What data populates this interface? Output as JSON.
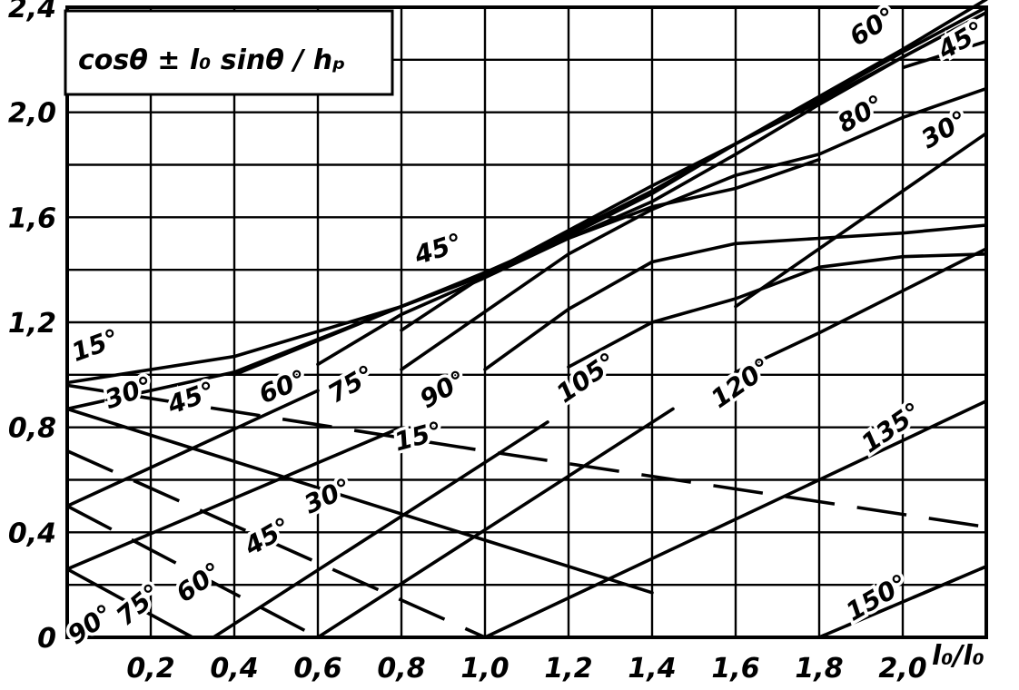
{
  "chart_data": {
    "type": "line",
    "title": "cosθ ± l₀ sinθ / hₚ",
    "xlabel": "l₀/l₀",
    "ylabel": "",
    "xlim": [
      0,
      2.2
    ],
    "ylim": [
      0,
      2.4
    ],
    "grid": true,
    "x_ticks": [
      "0,2",
      "0,4",
      "0,6",
      "0,8",
      "1,0",
      "1,2",
      "1,4",
      "1,6",
      "1,8",
      "2,0"
    ],
    "y_ticks": [
      "0",
      "0,4",
      "0,8",
      "1,2",
      "1,6",
      "2,0",
      "2,4"
    ],
    "series": [
      {
        "label": "15°",
        "group": "upper",
        "style": "solid",
        "points": [
          [
            0,
            0.97
          ],
          [
            0.4,
            1.07
          ],
          [
            0.8,
            1.26
          ],
          [
            1.0,
            1.38
          ],
          [
            1.2,
            1.54
          ],
          [
            1.4,
            1.7
          ],
          [
            1.6,
            1.88
          ],
          [
            1.8,
            2.06
          ],
          [
            2.0,
            2.24
          ],
          [
            2.2,
            2.43
          ]
        ]
      },
      {
        "label": "30°",
        "group": "upper",
        "style": "solid",
        "points": [
          [
            0,
            0.87
          ],
          [
            0.4,
            1.01
          ],
          [
            0.8,
            1.26
          ],
          [
            1.0,
            1.38
          ],
          [
            1.2,
            1.55
          ],
          [
            1.4,
            1.72
          ],
          [
            1.6,
            1.88
          ],
          [
            1.8,
            2.05
          ],
          [
            2.0,
            2.23
          ],
          [
            2.2,
            2.4
          ]
        ]
      },
      {
        "label": "45°",
        "group": "upper",
        "style": "solid",
        "points": [
          [
            0.4,
            1.0
          ],
          [
            0.8,
            1.26
          ],
          [
            1.0,
            1.39
          ],
          [
            1.2,
            1.53
          ],
          [
            1.4,
            1.69
          ],
          [
            1.6,
            1.88
          ],
          [
            1.8,
            2.04
          ],
          [
            2.0,
            2.21
          ],
          [
            2.2,
            2.38
          ]
        ]
      },
      {
        "label": "60°",
        "group": "upper",
        "style": "solid",
        "points": [
          [
            0.6,
            1.04
          ],
          [
            0.8,
            1.23
          ],
          [
            1.0,
            1.37
          ],
          [
            1.2,
            1.52
          ],
          [
            1.4,
            1.66
          ],
          [
            1.6,
            1.84
          ],
          [
            1.8,
            2.03
          ],
          [
            2.0,
            2.21
          ],
          [
            2.2,
            2.38
          ]
        ]
      },
      {
        "label": "75°",
        "group": "upper",
        "style": "solid",
        "points": [
          [
            0.8,
            1.17
          ],
          [
            1.0,
            1.38
          ],
          [
            1.2,
            1.52
          ],
          [
            1.4,
            1.64
          ],
          [
            1.6,
            1.71
          ],
          [
            1.8,
            1.82
          ]
        ]
      },
      {
        "label": "80°",
        "group": "upper",
        "style": "dashed",
        "points": [
          [
            2.0,
            2.17
          ],
          [
            2.2,
            2.27
          ]
        ]
      },
      {
        "label": "90°",
        "group": "upper",
        "style": "solid",
        "points": [
          [
            0.8,
            1.02
          ],
          [
            1.0,
            1.24
          ],
          [
            1.2,
            1.46
          ],
          [
            1.4,
            1.63
          ],
          [
            1.6,
            1.76
          ],
          [
            1.8,
            1.84
          ],
          [
            2.0,
            1.98
          ],
          [
            2.2,
            2.09
          ]
        ]
      },
      {
        "label": "105°",
        "group": "upper",
        "style": "solid",
        "points": [
          [
            1.0,
            1.02
          ],
          [
            1.2,
            1.25
          ],
          [
            1.4,
            1.43
          ],
          [
            1.6,
            1.5
          ],
          [
            1.8,
            1.52
          ],
          [
            2.0,
            1.54
          ],
          [
            2.2,
            1.57
          ]
        ]
      },
      {
        "label": "120°",
        "group": "upper",
        "style": "solid",
        "points": [
          [
            1.2,
            1.03
          ],
          [
            1.4,
            1.2
          ],
          [
            1.6,
            1.29
          ],
          [
            1.8,
            1.41
          ],
          [
            2.0,
            1.45
          ],
          [
            2.2,
            1.46
          ]
        ]
      },
      {
        "label": "135°",
        "group": "upper",
        "style": "solid",
        "points": [
          [
            1.6,
            1.01
          ],
          [
            1.8,
            1.16
          ],
          [
            2.0,
            1.32
          ],
          [
            2.2,
            1.48
          ]
        ]
      },
      {
        "label": "30°",
        "group": "right",
        "style": "solid",
        "points": [
          [
            1.6,
            1.26
          ],
          [
            2.2,
            1.92
          ]
        ]
      },
      {
        "label": "15°",
        "group": "lower",
        "style": "dashed",
        "points": [
          [
            0,
            0.96
          ],
          [
            1.0,
            0.71
          ],
          [
            2.2,
            0.42
          ]
        ]
      },
      {
        "label": "30°",
        "group": "lower",
        "style": "solid",
        "points": [
          [
            0,
            0.87
          ],
          [
            1.0,
            0.37
          ],
          [
            1.4,
            0.17
          ]
        ]
      },
      {
        "label": "45°",
        "group": "lower",
        "style": "dashed",
        "points": [
          [
            0,
            0.71
          ],
          [
            1.0,
            0.0
          ]
        ]
      },
      {
        "label": "60°",
        "group": "lower",
        "style": "dashed",
        "points": [
          [
            0,
            0.5
          ],
          [
            0.6,
            0.0
          ]
        ]
      },
      {
        "label": "75°",
        "group": "lower",
        "style": "solid",
        "points": [
          [
            0,
            0.26
          ],
          [
            0.3,
            0.0
          ]
        ]
      },
      {
        "label": "90°",
        "group": "lower",
        "style": "solid",
        "points": [
          [
            0,
            0.0
          ],
          [
            0.1,
            0.0
          ]
        ]
      },
      {
        "label": "150°",
        "group": "lower",
        "style": "dashed",
        "points": [
          [
            1.0,
            0.0
          ],
          [
            1.8,
            0.0
          ],
          [
            2.2,
            0.27
          ]
        ]
      },
      {
        "label": "",
        "group": "rising",
        "style": "solid",
        "points": [
          [
            0,
            0.26
          ],
          [
            0.8,
            0.8
          ]
        ]
      },
      {
        "label": "",
        "group": "rising",
        "style": "solid",
        "points": [
          [
            0,
            0.5
          ],
          [
            0.6,
            0.94
          ]
        ]
      },
      {
        "label": "",
        "group": "rising",
        "style": "solid",
        "points": [
          [
            0.35,
            0.0
          ],
          [
            1.15,
            0.82
          ]
        ]
      },
      {
        "label": "",
        "group": "rising",
        "style": "solid",
        "points": [
          [
            0.6,
            0.0
          ],
          [
            1.45,
            0.87
          ]
        ]
      },
      {
        "label": "",
        "group": "rising",
        "style": "solid",
        "points": [
          [
            1.0,
            0.0
          ],
          [
            2.2,
            0.9
          ]
        ]
      },
      {
        "label": "",
        "group": "rising",
        "style": "solid",
        "points": [
          [
            1.8,
            0.0
          ],
          [
            2.2,
            0.27
          ]
        ]
      }
    ],
    "annotations": [
      {
        "text": "60°",
        "at": [
          1.89,
          2.25
        ],
        "rotate": -32
      },
      {
        "text": "45°",
        "at": [
          2.1,
          2.2
        ],
        "rotate": -30
      },
      {
        "text": "80°",
        "at": [
          1.86,
          1.92
        ],
        "rotate": -30
      },
      {
        "text": "30°",
        "at": [
          2.06,
          1.86
        ],
        "rotate": -30
      },
      {
        "text": "45°",
        "at": [
          0.84,
          1.42
        ],
        "rotate": -18
      },
      {
        "text": "15°",
        "at": [
          0.02,
          1.05
        ],
        "rotate": -20
      },
      {
        "text": "30°",
        "at": [
          0.1,
          0.87
        ],
        "rotate": -20
      },
      {
        "text": "45°",
        "at": [
          0.25,
          0.85
        ],
        "rotate": -20
      },
      {
        "text": "60°",
        "at": [
          0.47,
          0.89
        ],
        "rotate": -22
      },
      {
        "text": "75°",
        "at": [
          0.64,
          0.89
        ],
        "rotate": -30
      },
      {
        "text": "90°",
        "at": [
          0.86,
          0.87
        ],
        "rotate": -30
      },
      {
        "text": "105°",
        "at": [
          1.19,
          0.89
        ],
        "rotate": -35
      },
      {
        "text": "120°",
        "at": [
          1.56,
          0.87
        ],
        "rotate": -35
      },
      {
        "text": "15°",
        "at": [
          0.79,
          0.71
        ],
        "rotate": -15
      },
      {
        "text": "135°",
        "at": [
          1.92,
          0.7
        ],
        "rotate": -35
      },
      {
        "text": "30°",
        "at": [
          0.58,
          0.47
        ],
        "rotate": -25
      },
      {
        "text": "45°",
        "at": [
          0.44,
          0.31
        ],
        "rotate": -30
      },
      {
        "text": "60°",
        "at": [
          0.28,
          0.13
        ],
        "rotate": -35
      },
      {
        "text": "75°",
        "at": [
          0.14,
          0.04
        ],
        "rotate": -40
      },
      {
        "text": "90°",
        "at": [
          0.02,
          -0.03
        ],
        "rotate": -35
      },
      {
        "text": "150°",
        "at": [
          1.88,
          0.06
        ],
        "rotate": -30
      }
    ]
  }
}
